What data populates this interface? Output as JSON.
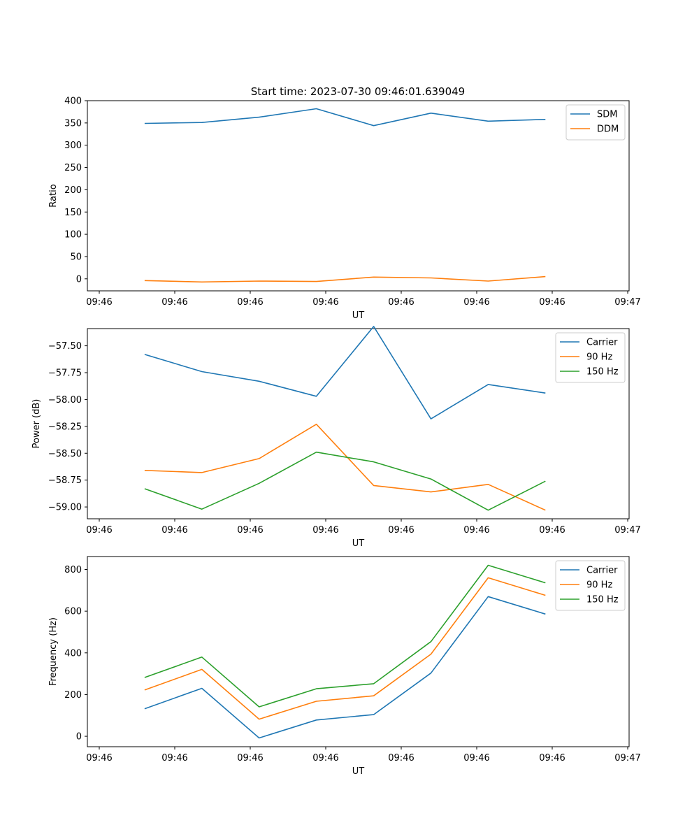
{
  "figure_title": "Start time: 2023-07-30 09:46:01.639049",
  "colors": {
    "blue": "#1f77b4",
    "orange": "#ff7f0e",
    "green": "#2ca02c"
  },
  "chart_data": [
    {
      "type": "line",
      "xlabel": "UT",
      "ylabel": "Ratio",
      "xticks": [
        "09:46",
        "09:46",
        "09:46",
        "09:46",
        "09:46",
        "09:46",
        "09:46",
        "09:47"
      ],
      "x": [
        0.5,
        1.15,
        1.8,
        2.45,
        3.1,
        3.75,
        4.4,
        5.05
      ],
      "xlim": [
        -0.15,
        6.0
      ],
      "ylim": [
        -27,
        400
      ],
      "yticks": [
        400,
        350,
        300,
        250,
        200,
        150,
        100,
        50,
        0
      ],
      "legend": "top-right",
      "series": [
        {
          "name": "SDM",
          "color": "#1f77b4",
          "values": [
            349,
            351,
            363,
            382,
            344,
            372,
            354,
            358
          ]
        },
        {
          "name": "DDM",
          "color": "#ff7f0e",
          "values": [
            -4,
            -7,
            -5,
            -6,
            4,
            2,
            -5,
            5
          ]
        }
      ]
    },
    {
      "type": "line",
      "xlabel": "UT",
      "ylabel": "Power (dB)",
      "xticks": [
        "09:46",
        "09:46",
        "09:46",
        "09:46",
        "09:46",
        "09:46",
        "09:46",
        "09:47"
      ],
      "x": [
        0.5,
        1.15,
        1.8,
        2.45,
        3.1,
        3.75,
        4.4,
        5.05
      ],
      "xlim": [
        -0.15,
        6.0
      ],
      "ylim": [
        -59.11,
        -57.34
      ],
      "yticks": [
        -57.5,
        -57.75,
        -58.0,
        -58.25,
        -58.5,
        -58.75,
        -59.0
      ],
      "ytick_labels": [
        "−57.50",
        "−57.75",
        "−58.00",
        "−58.25",
        "−58.50",
        "−58.75",
        "−59.00"
      ],
      "legend": "top-right",
      "series": [
        {
          "name": "Carrier",
          "color": "#1f77b4",
          "values": [
            -57.58,
            -57.74,
            -57.83,
            -57.97,
            -57.32,
            -58.18,
            -57.86,
            -57.94
          ]
        },
        {
          "name": "90 Hz",
          "color": "#ff7f0e",
          "values": [
            -58.66,
            -58.68,
            -58.55,
            -58.23,
            -58.8,
            -58.86,
            -58.79,
            -59.03
          ]
        },
        {
          "name": "150 Hz",
          "color": "#2ca02c",
          "values": [
            -58.83,
            -59.02,
            -58.78,
            -58.49,
            -58.58,
            -58.74,
            -59.03,
            -58.76
          ]
        }
      ]
    },
    {
      "type": "line",
      "xlabel": "UT",
      "ylabel": "Frequency (Hz)",
      "xticks": [
        "09:46",
        "09:46",
        "09:46",
        "09:46",
        "09:46",
        "09:46",
        "09:46",
        "09:47"
      ],
      "x": [
        0.5,
        1.15,
        1.8,
        2.45,
        3.1,
        3.75,
        4.4,
        5.05
      ],
      "xlim": [
        -0.15,
        6.0
      ],
      "ylim": [
        -50,
        862
      ],
      "yticks": [
        800,
        600,
        400,
        200,
        0
      ],
      "legend": "top-right",
      "series": [
        {
          "name": "Carrier",
          "color": "#1f77b4",
          "values": [
            132,
            230,
            -8,
            78,
            104,
            303,
            670,
            586
          ]
        },
        {
          "name": "90 Hz",
          "color": "#ff7f0e",
          "values": [
            222,
            321,
            82,
            168,
            194,
            394,
            760,
            676
          ]
        },
        {
          "name": "150 Hz",
          "color": "#2ca02c",
          "values": [
            282,
            380,
            141,
            228,
            252,
            454,
            820,
            736
          ]
        }
      ]
    }
  ]
}
